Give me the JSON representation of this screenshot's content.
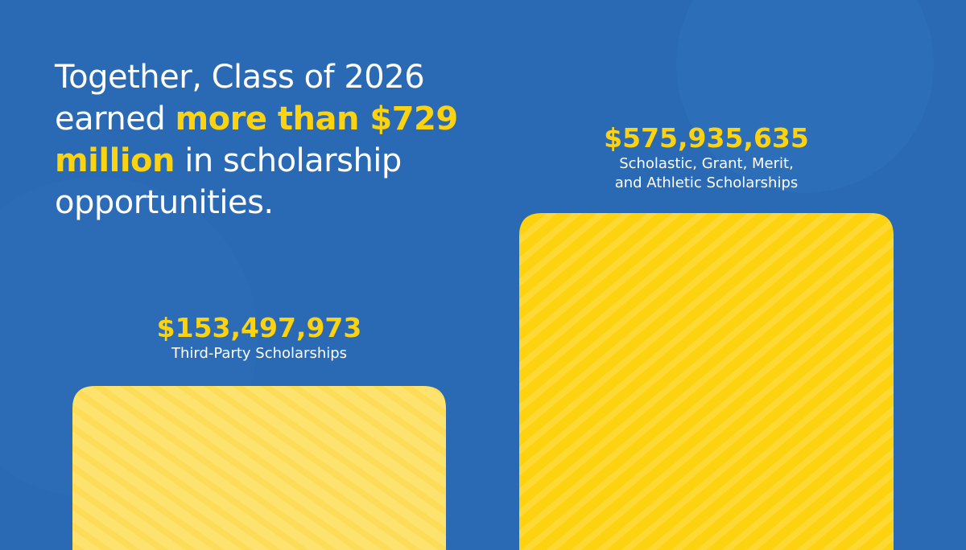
{
  "headline": {
    "lines": [
      [
        {
          "text": "Together, Class of 2026"
        }
      ],
      [
        {
          "text": "earned "
        },
        {
          "text": "more than $729",
          "highlight": true
        }
      ],
      [
        {
          "text": "million",
          "highlight": true
        },
        {
          "text": " in scholarship"
        }
      ],
      [
        {
          "text": "opportunities."
        }
      ]
    ]
  },
  "items": [
    {
      "amount": "$153,497,973",
      "label_lines": [
        "Third-Party Scholarships"
      ]
    },
    {
      "amount": "$575,935,635",
      "label_lines": [
        "Scholastic, Grant, Merit,",
        "and Athletic Scholarships"
      ]
    }
  ]
}
